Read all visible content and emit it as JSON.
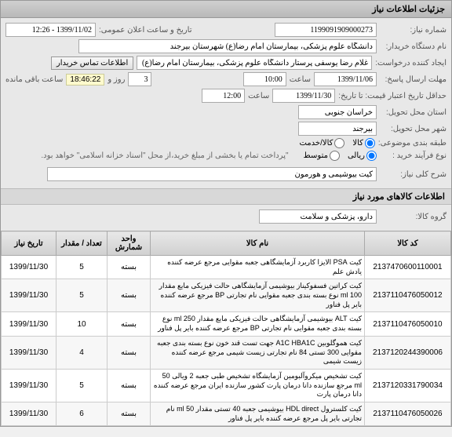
{
  "header": {
    "title": "جزئیات اطلاعات نیاز"
  },
  "form": {
    "need_number_label": "شماره نیاز:",
    "need_number": "1199091909000273",
    "announce_label": "تاریخ و ساعت اعلان عمومی:",
    "announce_value": "1399/11/02 - 12:26",
    "buyer_label": "نام دستگاه خریدار:",
    "buyer_value": "دانشگاه علوم پزشکی، بیمارستان امام رضا(ع) شهرستان بیرجند",
    "creator_label": "ایجاد کننده درخواست:",
    "creator_value": "غلام رضا یوسفی پرستار دانشگاه علوم پزشکی، بیمارستان امام رضا(ع) شهرست",
    "contact_btn": "اطلاعات تماس خریدار",
    "deadline_label": "مهلت ارسال پاسخ:",
    "deadline_date": "1399/11/06",
    "saat_label": "ساعت",
    "deadline_time": "10:00",
    "days_num": "3",
    "rooz_label": "روز و",
    "countdown": "18:46:22",
    "remaining": "ساعت باقی مانده",
    "validity_label": "حداقل تاریخ اعتبار قیمت: تا تاریخ:",
    "validity_date": "1399/11/30",
    "validity_time": "12:00",
    "province_label": "استان محل تحویل:",
    "province": "خراسان جنوبی",
    "city_label": "شهر محل تحویل:",
    "city": "بیرجند",
    "category_label": "طبقه بندی موضوعی:",
    "cat_kala": "کالا",
    "cat_khadamat": "کالا/خدمت",
    "process_label": "نوع فرآیند خرید :",
    "proc_kam": "متوسط",
    "proc_ziad": "ریالی",
    "payment_note": "\"پرداخت تمام یا بخشی از مبلغ خرید،از محل \"اسناد خزانه اسلامی\" خواهد بود."
  },
  "detail": {
    "general_label": "شرح کلی نیاز:",
    "general_value": "کیت بیوشیمی و هورمون"
  },
  "section_items": "اطلاعات کالاهای مورد نیاز",
  "group": {
    "label": "گروه کالا:",
    "value": "دارو، پزشکی و سلامت"
  },
  "table": {
    "headers": {
      "code": "کد کالا",
      "name": "نام کالا",
      "unit": "واحد شمارش",
      "qty": "تعداد / مقدار",
      "date": "تاریخ نیاز"
    },
    "rows": [
      {
        "code": "2137470600110001",
        "name": "کیت PSA الایزا کاربرد آزمایشگاهی جعبه مقوایی مرجع عرضه کننده یادش علم",
        "unit": "بسته",
        "qty": "5",
        "date": "1399/11/30"
      },
      {
        "code": "2137110476050012",
        "name": "کیت کراتین فسفوکیناز بیوشیمی آزمایشگاهی حالت فیزیکی مایع مقدار 100 ml نوع بسته بندی جعبه مقوایی نام تجارتی BP مرجع عرضه کننده بایر پل فناور",
        "unit": "بسته",
        "qty": "5",
        "date": "1399/11/30"
      },
      {
        "code": "2137110476050010",
        "name": "کیت ALT بیوشیمی آزمایشگاهی حالت فیزیکی مایع مقدار 250 ml نوع بسته بندی جعبه مقوایی نام تجارتی BP مرجع عرضه کننده بایر پل فناور",
        "unit": "بسته",
        "qty": "10",
        "date": "1399/11/30"
      },
      {
        "code": "2137120244390006",
        "name": "کیت هموگلوبین A1C HBA1C جهت تست قند خون نوع بسته بندی جعبه مقوایی 300 تستی 84 نام تجارتی زیست شیمی مرجع عرضه کننده زیست شیمی",
        "unit": "بسته",
        "qty": "4",
        "date": "1399/11/30"
      },
      {
        "code": "2137120331790034",
        "name": "کیت تشخیص میکروآلبومین آزمایشگاه تشخیص طبی جعبه 2 ویالی 50 ml مرجع سازنده دانا درمان پارت کشور سازنده ایران مرجع عرضه کننده دانا درمان پارت",
        "unit": "بسته",
        "qty": "5",
        "date": "1399/11/30"
      },
      {
        "code": "2137110476050026",
        "name": "کیت کلسترول HDL direct بیوشیمی جعبه 40 تستی مقدار 50 ml نام تجارتی بایر پل مرجع عرضه کننده بایر پل فناور",
        "unit": "بسته",
        "qty": "6",
        "date": "1399/11/30"
      }
    ]
  }
}
